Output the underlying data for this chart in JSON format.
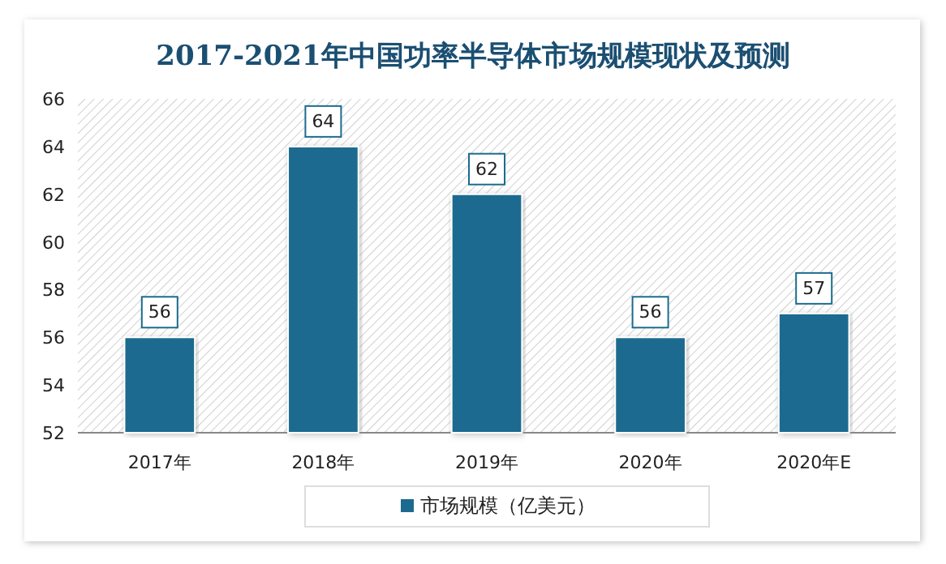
{
  "chart_data": {
    "type": "bar",
    "title": "2017-2021年中国功率半导体市场规模现状及预测",
    "categories": [
      "2017年",
      "2018年",
      "2019年",
      "2020年",
      "2020年E"
    ],
    "series": [
      {
        "name": "市场规模（亿美元）",
        "color": "#1c6b8f",
        "values": [
          56,
          64,
          62,
          56,
          57
        ]
      }
    ],
    "ylim": [
      52,
      66
    ],
    "yticks": [
      52,
      54,
      56,
      58,
      60,
      62,
      64,
      66
    ],
    "data_labels": true,
    "legend": "bottom"
  }
}
